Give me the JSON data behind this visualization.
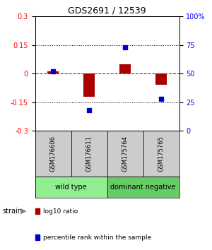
{
  "title": "GDS2691 / 12539",
  "samples": [
    "GSM176606",
    "GSM176611",
    "GSM175764",
    "GSM175765"
  ],
  "log10_ratio": [
    0.01,
    -0.12,
    0.05,
    -0.06
  ],
  "percentile_rank": [
    52,
    18,
    73,
    28
  ],
  "ylim_left": [
    -0.3,
    0.3
  ],
  "ylim_right": [
    0,
    100
  ],
  "yticks_left": [
    -0.3,
    -0.15,
    0,
    0.15,
    0.3
  ],
  "yticks_right": [
    0,
    25,
    50,
    75,
    100
  ],
  "groups": [
    {
      "label": "wild type",
      "samples": [
        0,
        1
      ],
      "color": "#90EE90"
    },
    {
      "label": "dominant negative",
      "samples": [
        2,
        3
      ],
      "color": "#66CC66"
    }
  ],
  "bar_color": "#AA0000",
  "dot_color": "#0000CC",
  "zero_line_color": "#CC0000",
  "background_color": "#FFFFFF",
  "label_log10": "log10 ratio",
  "label_percentile": "percentile rank within the sample",
  "strain_label": "strain",
  "sample_box_color": "#CCCCCC"
}
